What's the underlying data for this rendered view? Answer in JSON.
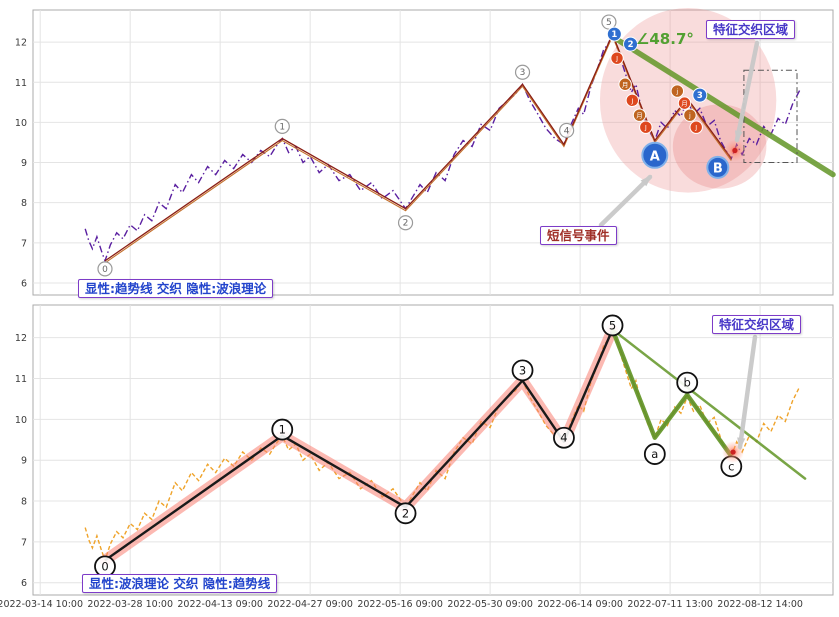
{
  "colors": {
    "price_top": "#5a1fa0",
    "price_bottom": "#efa32a",
    "trend_main": "#8b1f14",
    "trend_secondary": "#c4702c",
    "green": "#66982c",
    "angle_green": "#52a032",
    "wave_black": "#1a1a1a",
    "wave_halo": "rgba(250,128,114,0.55)",
    "badge_blue": "#2f6fd0",
    "event_blue": "#2a66cc",
    "label_border_purple": "#7d3cc8",
    "grid": "#e4e4e4"
  },
  "chart_data": {
    "type": "line",
    "title": "",
    "xlabel": "",
    "ylabel": "",
    "grid": true,
    "xlim": [
      -0.08,
      8.81
    ],
    "ylim": [
      5.7,
      12.8
    ],
    "y_ticks": [
      6,
      7,
      8,
      9,
      10,
      11,
      12
    ],
    "x_tick_labels": [
      "2022-03-14 10:00",
      "2022-03-28 10:00",
      "2022-04-13 09:00",
      "2022-04-27 09:00",
      "2022-05-16 09:00",
      "2022-05-30 09:00",
      "2022-06-14 09:00",
      "2022-07-11 13:00",
      "2022-08-12 14:00"
    ],
    "price_series": {
      "name": "price",
      "x_unit": "x-tick-index",
      "points": [
        [
          0.5,
          7.35
        ],
        [
          0.54,
          7.05
        ],
        [
          0.58,
          6.85
        ],
        [
          0.63,
          7.15
        ],
        [
          0.68,
          6.8
        ],
        [
          0.72,
          6.55
        ],
        [
          0.78,
          6.95
        ],
        [
          0.85,
          7.25
        ],
        [
          0.92,
          7.1
        ],
        [
          1.0,
          7.45
        ],
        [
          1.08,
          7.3
        ],
        [
          1.16,
          7.7
        ],
        [
          1.24,
          7.55
        ],
        [
          1.32,
          8.0
        ],
        [
          1.4,
          7.85
        ],
        [
          1.5,
          8.45
        ],
        [
          1.58,
          8.25
        ],
        [
          1.68,
          8.7
        ],
        [
          1.76,
          8.5
        ],
        [
          1.86,
          8.9
        ],
        [
          1.95,
          8.7
        ],
        [
          2.05,
          9.05
        ],
        [
          2.15,
          8.85
        ],
        [
          2.25,
          9.2
        ],
        [
          2.35,
          9.0
        ],
        [
          2.45,
          9.3
        ],
        [
          2.55,
          9.15
        ],
        [
          2.62,
          9.4
        ],
        [
          2.69,
          9.6
        ],
        [
          2.76,
          9.25
        ],
        [
          2.84,
          9.4
        ],
        [
          2.92,
          9.0
        ],
        [
          3.0,
          9.15
        ],
        [
          3.1,
          8.75
        ],
        [
          3.2,
          8.95
        ],
        [
          3.32,
          8.55
        ],
        [
          3.44,
          8.7
        ],
        [
          3.56,
          8.3
        ],
        [
          3.68,
          8.5
        ],
        [
          3.8,
          8.1
        ],
        [
          3.92,
          8.3
        ],
        [
          4.06,
          7.85
        ],
        [
          4.14,
          8.15
        ],
        [
          4.22,
          8.45
        ],
        [
          4.3,
          8.25
        ],
        [
          4.4,
          8.75
        ],
        [
          4.5,
          8.55
        ],
        [
          4.6,
          9.2
        ],
        [
          4.7,
          9.55
        ],
        [
          4.8,
          9.4
        ],
        [
          4.9,
          9.95
        ],
        [
          5.0,
          9.8
        ],
        [
          5.1,
          10.35
        ],
        [
          5.2,
          10.55
        ],
        [
          5.28,
          10.7
        ],
        [
          5.36,
          10.95
        ],
        [
          5.44,
          10.55
        ],
        [
          5.52,
          10.25
        ],
        [
          5.62,
          9.85
        ],
        [
          5.72,
          9.6
        ],
        [
          5.82,
          9.45
        ],
        [
          5.9,
          9.95
        ],
        [
          5.98,
          10.35
        ],
        [
          6.04,
          10.2
        ],
        [
          6.12,
          10.9
        ],
        [
          6.18,
          11.25
        ],
        [
          6.26,
          11.8
        ],
        [
          6.31,
          11.95
        ],
        [
          6.36,
          12.2
        ],
        [
          6.42,
          11.8
        ],
        [
          6.47,
          11.45
        ],
        [
          6.52,
          11.1
        ],
        [
          6.57,
          10.75
        ],
        [
          6.62,
          10.95
        ],
        [
          6.68,
          10.35
        ],
        [
          6.74,
          9.95
        ],
        [
          6.79,
          9.7
        ],
        [
          6.83,
          9.55
        ],
        [
          6.9,
          10.0
        ],
        [
          6.97,
          9.85
        ],
        [
          7.05,
          10.3
        ],
        [
          7.12,
          10.15
        ],
        [
          7.19,
          10.55
        ],
        [
          7.26,
          10.2
        ],
        [
          7.33,
          10.35
        ],
        [
          7.41,
          9.9
        ],
        [
          7.49,
          10.05
        ],
        [
          7.56,
          9.55
        ],
        [
          7.62,
          9.3
        ],
        [
          7.68,
          9.1
        ],
        [
          7.74,
          9.45
        ],
        [
          7.8,
          9.2
        ],
        [
          7.88,
          9.6
        ],
        [
          7.96,
          9.45
        ],
        [
          8.04,
          9.9
        ],
        [
          8.12,
          9.7
        ],
        [
          8.2,
          10.1
        ],
        [
          8.28,
          9.95
        ],
        [
          8.36,
          10.45
        ],
        [
          8.44,
          10.8
        ]
      ]
    },
    "panels": [
      {
        "id": "top",
        "legend": "显性:趋势线 交织 隐性:波浪理论",
        "region_label": "特征交织区域",
        "signal_label": "短信号事件",
        "price_style": {
          "color": "#5a1fa0",
          "dash": "7 3 1.5 3"
        },
        "trend_path": [
          [
            0.72,
            6.55
          ],
          [
            2.69,
            9.6
          ],
          [
            4.06,
            7.85
          ],
          [
            5.36,
            10.95
          ],
          [
            5.82,
            9.45
          ],
          [
            6.36,
            12.2
          ],
          [
            6.83,
            9.55
          ],
          [
            7.19,
            10.6
          ],
          [
            7.68,
            9.1
          ]
        ],
        "green_line": [
          [
            6.35,
            12.15
          ],
          [
            8.81,
            8.7
          ]
        ],
        "green_width": 5.5,
        "pivot_style": "small-gray",
        "pivots": [
          {
            "label": "0",
            "x": 0.72,
            "y": 6.35
          },
          {
            "label": "1",
            "x": 2.69,
            "y": 9.9
          },
          {
            "label": "2",
            "x": 4.06,
            "y": 7.5
          },
          {
            "label": "3",
            "x": 5.36,
            "y": 11.25
          },
          {
            "label": "4",
            "x": 5.85,
            "y": 9.8
          },
          {
            "label": "5",
            "x": 6.32,
            "y": 12.5
          }
        ],
        "blue_badges": [
          {
            "label": "1",
            "x": 6.38,
            "y": 12.2
          },
          {
            "label": "2",
            "x": 6.56,
            "y": 11.95
          },
          {
            "label": "3",
            "x": 7.33,
            "y": 10.68
          }
        ],
        "badge_colors": [
          "#de481e",
          "#bf6420"
        ],
        "orange_badges": [
          {
            "label": "J",
            "x": 6.41,
            "y": 11.6
          },
          {
            "label": "月",
            "x": 6.5,
            "y": 10.95
          },
          {
            "label": "J",
            "x": 6.58,
            "y": 10.55
          },
          {
            "label": "月",
            "x": 6.66,
            "y": 10.18
          },
          {
            "label": "J",
            "x": 6.73,
            "y": 9.88
          },
          {
            "label": "j",
            "x": 7.08,
            "y": 10.78
          },
          {
            "label": "月",
            "x": 7.16,
            "y": 10.48
          },
          {
            "label": "j",
            "x": 7.22,
            "y": 10.18
          },
          {
            "label": "J",
            "x": 7.29,
            "y": 9.88
          }
        ],
        "events": [
          {
            "label": "A",
            "x": 6.83,
            "y": 9.18,
            "r": 12.5
          },
          {
            "label": "B",
            "x": 7.53,
            "y": 8.88,
            "r": 10.5
          }
        ],
        "ellipses": [
          {
            "cx": 7.2,
            "cy": 10.55,
            "rx": 0.98,
            "ry": 2.3,
            "fill": "rgba(235,140,140,0.30)"
          },
          {
            "cx": 7.55,
            "cy": 9.4,
            "rx": 0.52,
            "ry": 1.05,
            "fill": "rgba(230,120,120,0.28)"
          }
        ],
        "dashed_rect": {
          "x1": 7.82,
          "y1": 9.0,
          "x2": 8.41,
          "y2": 11.3
        },
        "hotspots": [
          {
            "x": 7.72,
            "y": 9.3
          }
        ],
        "angle_label": {
          "text": "∠48.7°",
          "x": 6.62,
          "y": 11.95
        },
        "arrows": [
          {
            "from": [
              757,
              43
            ],
            "to": [
              737,
              140
            ]
          },
          {
            "from": [
              601,
              225
            ],
            "to": [
              650,
              177
            ]
          }
        ]
      },
      {
        "id": "bottom",
        "legend": "显性:波浪理论 交织 隐性:趋势线",
        "region_label": "特征交织区域",
        "price_style": {
          "color": "#efa32a",
          "dash": "4 2.5"
        },
        "wave_path": [
          [
            0.72,
            6.55
          ],
          [
            2.69,
            9.6
          ],
          [
            4.06,
            7.85
          ],
          [
            5.36,
            10.95
          ],
          [
            5.82,
            9.45
          ],
          [
            6.36,
            12.2
          ]
        ],
        "dark_zigzag": [
          [
            6.36,
            12.2
          ],
          [
            6.83,
            9.55
          ],
          [
            7.19,
            10.6
          ],
          [
            7.68,
            9.1
          ]
        ],
        "green_line": [
          [
            6.36,
            12.2
          ],
          [
            8.5,
            8.55
          ]
        ],
        "green_width": 2.5,
        "green_zigzag": [
          [
            6.36,
            12.2
          ],
          [
            6.83,
            9.55
          ],
          [
            7.19,
            10.6
          ],
          [
            7.68,
            9.1
          ]
        ],
        "pivot_style": "large-black",
        "pivots": [
          {
            "label": "0",
            "x": 0.72,
            "y": 6.4
          },
          {
            "label": "1",
            "x": 2.69,
            "y": 9.75
          },
          {
            "label": "2",
            "x": 4.06,
            "y": 7.7
          },
          {
            "label": "3",
            "x": 5.36,
            "y": 11.2
          },
          {
            "label": "4",
            "x": 5.82,
            "y": 9.55
          },
          {
            "label": "5",
            "x": 6.36,
            "y": 12.3
          },
          {
            "label": "a",
            "x": 6.83,
            "y": 9.15
          },
          {
            "label": "b",
            "x": 7.19,
            "y": 10.9
          },
          {
            "label": "c",
            "x": 7.68,
            "y": 8.85
          }
        ],
        "hotspots": [
          {
            "x": 7.7,
            "y": 9.2
          }
        ],
        "arrows": [
          {
            "from": [
              755,
              337
            ],
            "to": [
              740,
              447
            ]
          }
        ]
      }
    ]
  }
}
